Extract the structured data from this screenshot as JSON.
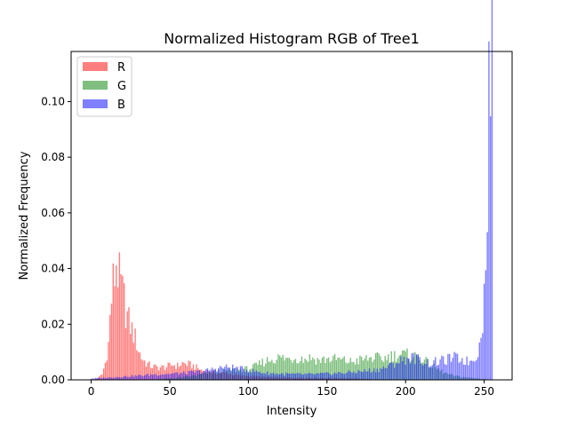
{
  "chart_data": {
    "type": "bar",
    "title": "Normalized Histogram RGB of Tree1",
    "xlabel": "Intensity",
    "ylabel": "Normalized Frequency",
    "xlim": [
      -12.75,
      267.75
    ],
    "ylim": [
      0,
      0.118
    ],
    "xticks": [
      0,
      50,
      100,
      150,
      200,
      250
    ],
    "yticks": [
      0.0,
      0.02,
      0.04,
      0.06,
      0.08,
      0.1
    ],
    "ytick_labels": [
      "0.00",
      "0.02",
      "0.04",
      "0.06",
      "0.08",
      "0.10"
    ],
    "grid": false,
    "legend_position": "top-left",
    "bin_count": 256,
    "bar_alpha": 0.5,
    "series": [
      {
        "name": "R",
        "color": "#ff0000",
        "keypoints": [
          [
            0,
            0.0
          ],
          [
            4,
            0.0005
          ],
          [
            7,
            0.002
          ],
          [
            9,
            0.006
          ],
          [
            11,
            0.013
          ],
          [
            12,
            0.022
          ],
          [
            13,
            0.029
          ],
          [
            14,
            0.035
          ],
          [
            15,
            0.037
          ],
          [
            16,
            0.043
          ],
          [
            17,
            0.039
          ],
          [
            18,
            0.036
          ],
          [
            19,
            0.034
          ],
          [
            20,
            0.031
          ],
          [
            21,
            0.029
          ],
          [
            22,
            0.025
          ],
          [
            24,
            0.021
          ],
          [
            26,
            0.018
          ],
          [
            28,
            0.015
          ],
          [
            30,
            0.011
          ],
          [
            32,
            0.008
          ],
          [
            35,
            0.006
          ],
          [
            38,
            0.005
          ],
          [
            42,
            0.0045
          ],
          [
            46,
            0.0045
          ],
          [
            50,
            0.005
          ],
          [
            52,
            0.0055
          ],
          [
            55,
            0.005
          ],
          [
            58,
            0.006
          ],
          [
            62,
            0.0055
          ],
          [
            65,
            0.005
          ],
          [
            70,
            0.0035
          ],
          [
            75,
            0.003
          ],
          [
            80,
            0.0025
          ],
          [
            85,
            0.0025
          ],
          [
            90,
            0.002
          ],
          [
            95,
            0.0015
          ],
          [
            100,
            0.0015
          ],
          [
            110,
            0.001
          ],
          [
            130,
            0.0008
          ],
          [
            160,
            0.0006
          ],
          [
            175,
            0.0003
          ],
          [
            185,
            0.0
          ],
          [
            255,
            0.0
          ]
        ]
      },
      {
        "name": "G",
        "color": "#008000",
        "keypoints": [
          [
            0,
            0.0
          ],
          [
            30,
            0.0
          ],
          [
            40,
            0.0002
          ],
          [
            50,
            0.0005
          ],
          [
            60,
            0.001
          ],
          [
            70,
            0.002
          ],
          [
            80,
            0.003
          ],
          [
            90,
            0.0035
          ],
          [
            100,
            0.004
          ],
          [
            105,
            0.005
          ],
          [
            110,
            0.0065
          ],
          [
            115,
            0.0075
          ],
          [
            120,
            0.008
          ],
          [
            125,
            0.0075
          ],
          [
            130,
            0.008
          ],
          [
            135,
            0.0075
          ],
          [
            140,
            0.008
          ],
          [
            145,
            0.007
          ],
          [
            150,
            0.0075
          ],
          [
            155,
            0.0075
          ],
          [
            160,
            0.007
          ],
          [
            165,
            0.0065
          ],
          [
            170,
            0.007
          ],
          [
            175,
            0.0075
          ],
          [
            180,
            0.008
          ],
          [
            185,
            0.0075
          ],
          [
            190,
            0.0085
          ],
          [
            195,
            0.009
          ],
          [
            200,
            0.009
          ],
          [
            205,
            0.0085
          ],
          [
            210,
            0.008
          ],
          [
            215,
            0.0055
          ],
          [
            220,
            0.004
          ],
          [
            225,
            0.0025
          ],
          [
            230,
            0.0015
          ],
          [
            240,
            0.0008
          ],
          [
            250,
            0.0003
          ],
          [
            255,
            0.0
          ]
        ]
      },
      {
        "name": "B",
        "color": "#0000ff",
        "keypoints": [
          [
            0,
            0.0005
          ],
          [
            10,
            0.0008
          ],
          [
            20,
            0.0012
          ],
          [
            30,
            0.0015
          ],
          [
            40,
            0.002
          ],
          [
            50,
            0.0022
          ],
          [
            60,
            0.0025
          ],
          [
            70,
            0.003
          ],
          [
            75,
            0.0035
          ],
          [
            80,
            0.0042
          ],
          [
            85,
            0.0045
          ],
          [
            90,
            0.0045
          ],
          [
            95,
            0.004
          ],
          [
            100,
            0.0035
          ],
          [
            105,
            0.003
          ],
          [
            110,
            0.0025
          ],
          [
            120,
            0.0022
          ],
          [
            130,
            0.002
          ],
          [
            140,
            0.002
          ],
          [
            150,
            0.0022
          ],
          [
            160,
            0.0025
          ],
          [
            170,
            0.003
          ],
          [
            180,
            0.0035
          ],
          [
            185,
            0.004
          ],
          [
            190,
            0.005
          ],
          [
            195,
            0.0065
          ],
          [
            200,
            0.0075
          ],
          [
            205,
            0.008
          ],
          [
            210,
            0.007
          ],
          [
            215,
            0.006
          ],
          [
            220,
            0.0065
          ],
          [
            225,
            0.007
          ],
          [
            230,
            0.008
          ],
          [
            235,
            0.0075
          ],
          [
            240,
            0.0065
          ],
          [
            243,
            0.0075
          ],
          [
            245,
            0.009
          ],
          [
            247,
            0.012
          ],
          [
            249,
            0.022
          ],
          [
            250,
            0.03
          ],
          [
            251,
            0.039
          ],
          [
            252,
            0.072
          ],
          [
            253,
            0.101
          ],
          [
            254,
            0.112
          ],
          [
            255,
            0.113
          ]
        ]
      }
    ]
  }
}
